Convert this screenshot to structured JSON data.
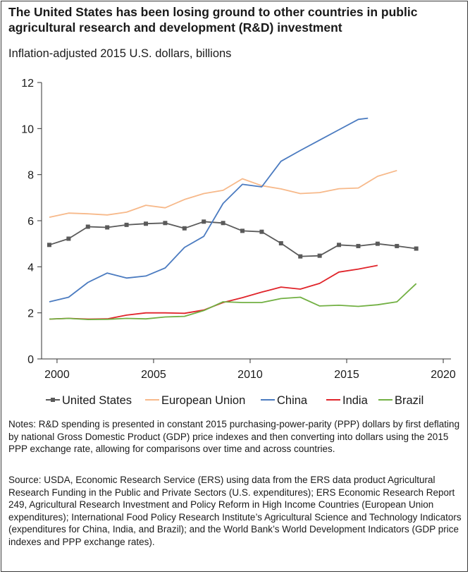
{
  "title": "The United States has been losing ground to other countries in public agricultural research and development (R&D) investment",
  "subtitle": "Inflation-adjusted 2015 U.S. dollars, billions",
  "notes": "Notes: R&D spending is presented in constant 2015 purchasing-power-parity (PPP) dollars by first deflating by national Gross Domestic Product (GDP) price indexes and then converting into dollars using the 2015 PPP exchange rate, allowing for comparisons over time and across countries.",
  "source": "Source: USDA, Economic Research Service (ERS) using data from the ERS data product Agricultural Research Funding in the Public and Private Sectors (U.S. expenditures); ERS Economic Research Report 249, Agricultural Research Investment and Policy Reform in High Income Countries (European Union expenditures); International Food Policy Research Institute’s Agricultural Science and Technology Indicators (expenditures for China, India, and Brazil); and the World Bank’s World Development Indicators (GDP price indexes and PPP exchange rates).",
  "chart_data": {
    "type": "line",
    "title": "The United States has been losing ground to other countries in public agricultural research and development (R&D) investment",
    "ylabel": "Inflation-adjusted 2015 U.S. dollars, billions",
    "xlabel": "",
    "xlim": [
      1999.2,
      2020.4
    ],
    "ylim": [
      0,
      12
    ],
    "x_ticks": [
      2000,
      2005,
      2010,
      2015,
      2020
    ],
    "y_ticks": [
      0,
      2,
      4,
      6,
      8,
      10,
      12
    ],
    "grid": false,
    "legend_position": "bottom",
    "series": [
      {
        "name": "United States",
        "color": "#5a5a5a",
        "markers": true,
        "x": [
          1999.6,
          2000.6,
          2001.6,
          2002.6,
          2003.6,
          2004.6,
          2005.6,
          2006.6,
          2007.6,
          2008.6,
          2009.6,
          2010.6,
          2011.6,
          2012.6,
          2013.6,
          2014.6,
          2015.6,
          2016.6,
          2017.6,
          2018.6
        ],
        "y": [
          4.95,
          5.22,
          5.74,
          5.71,
          5.82,
          5.87,
          5.9,
          5.67,
          5.96,
          5.9,
          5.56,
          5.52,
          5.02,
          4.45,
          4.48,
          4.95,
          4.9,
          5.0,
          4.9,
          4.79
        ]
      },
      {
        "name": "European Union",
        "color": "#f7b98a",
        "markers": false,
        "x": [
          1999.6,
          2000.6,
          2001.6,
          2002.6,
          2003.6,
          2004.6,
          2005.6,
          2006.6,
          2007.6,
          2008.6,
          2009.6,
          2010.6,
          2011.6,
          2012.6,
          2013.6,
          2014.6,
          2015.6,
          2016.6,
          2017.6
        ],
        "y": [
          6.15,
          6.33,
          6.3,
          6.25,
          6.37,
          6.67,
          6.56,
          6.92,
          7.18,
          7.32,
          7.82,
          7.52,
          7.38,
          7.18,
          7.22,
          7.39,
          7.42,
          7.93,
          8.18
        ]
      },
      {
        "name": "China",
        "color": "#4b7bc0",
        "markers": false,
        "x": [
          1999.6,
          2000.6,
          2001.6,
          2002.6,
          2003.6,
          2004.6,
          2005.6,
          2006.6,
          2007.6,
          2008.6,
          2009.6,
          2010.6,
          2011.6,
          2012.6,
          2013.6,
          2014.6,
          2015.6,
          2016.1
        ],
        "y": [
          2.48,
          2.68,
          3.32,
          3.73,
          3.51,
          3.6,
          3.95,
          4.84,
          5.32,
          6.75,
          7.58,
          7.47,
          8.58,
          9.05,
          9.5,
          9.95,
          10.4,
          10.45
        ]
      },
      {
        "name": "India",
        "color": "#e0242a",
        "markers": false,
        "x": [
          1999.6,
          2000.6,
          2001.6,
          2002.6,
          2003.6,
          2004.6,
          2005.6,
          2006.6,
          2007.6,
          2008.6,
          2009.6,
          2010.6,
          2011.6,
          2012.6,
          2013.6,
          2014.6,
          2015.6,
          2016.6
        ],
        "y": [
          1.73,
          1.76,
          1.73,
          1.74,
          1.9,
          2.0,
          2.0,
          1.98,
          2.12,
          2.45,
          2.66,
          2.9,
          3.12,
          3.03,
          3.28,
          3.77,
          3.9,
          4.06
        ]
      },
      {
        "name": "Brazil",
        "color": "#72b043",
        "markers": false,
        "x": [
          1999.6,
          2000.6,
          2001.6,
          2002.6,
          2003.6,
          2004.6,
          2005.6,
          2006.6,
          2007.6,
          2008.6,
          2009.6,
          2010.6,
          2011.6,
          2012.6,
          2013.6,
          2014.6,
          2015.6,
          2016.6,
          2017.6,
          2018.6
        ],
        "y": [
          1.73,
          1.76,
          1.71,
          1.72,
          1.76,
          1.74,
          1.82,
          1.85,
          2.1,
          2.48,
          2.45,
          2.45,
          2.62,
          2.68,
          2.3,
          2.33,
          2.28,
          2.35,
          2.48,
          3.27
        ]
      }
    ]
  }
}
